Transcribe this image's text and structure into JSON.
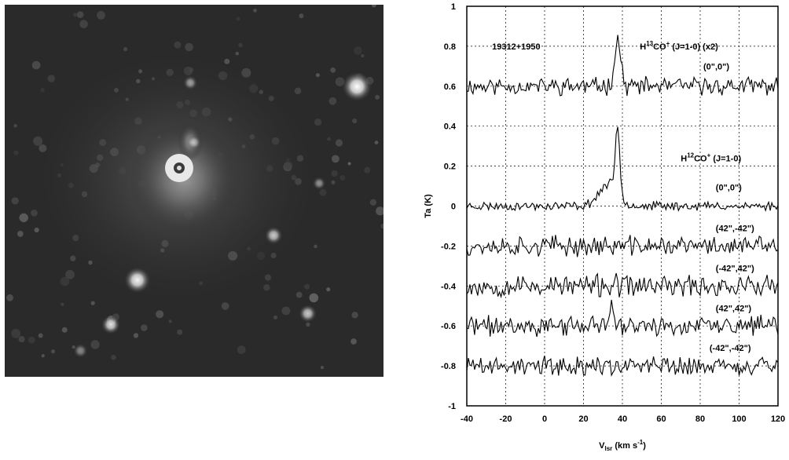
{
  "image_panel": {
    "kind": "grayscale astronomical image",
    "background": "#2a2a2a",
    "nebula": {
      "label_visible": false
    },
    "point_sources": [
      {
        "xf": 0.93,
        "yf": 0.22,
        "b": 1.0,
        "r": 0.025
      },
      {
        "xf": 0.35,
        "yf": 0.74,
        "b": 0.95,
        "r": 0.022
      },
      {
        "xf": 0.28,
        "yf": 0.86,
        "b": 0.85,
        "r": 0.016
      },
      {
        "xf": 0.71,
        "yf": 0.62,
        "b": 0.75,
        "r": 0.015
      },
      {
        "xf": 0.8,
        "yf": 0.83,
        "b": 0.75,
        "r": 0.015
      },
      {
        "xf": 0.49,
        "yf": 0.21,
        "b": 0.55,
        "r": 0.012
      },
      {
        "xf": 0.83,
        "yf": 0.48,
        "b": 0.5,
        "r": 0.011
      },
      {
        "xf": 0.2,
        "yf": 0.93,
        "b": 0.45,
        "r": 0.012
      },
      {
        "xf": 0.5,
        "yf": 0.37,
        "b": 0.55,
        "r": 0.012
      }
    ]
  },
  "chart_data": {
    "type": "line",
    "title": "",
    "source_label": "19312+1950",
    "xlabel_main": "V",
    "xlabel_sub": "lsr",
    "xlabel_units": " (km s",
    "xlabel_exp": "-1",
    "xlabel_close": ")",
    "ylabel": "Ta (K)",
    "xlim": [
      -40,
      120
    ],
    "ylim": [
      -1,
      1
    ],
    "xticks": [
      -40,
      -20,
      0,
      20,
      40,
      60,
      80,
      100,
      120
    ],
    "yticks": [
      -1,
      -0.8,
      -0.6,
      -0.4,
      -0.2,
      0,
      0.2,
      0.4,
      0.6,
      0.8,
      1
    ],
    "ytick_labels": [
      "-1",
      "-0.8",
      "-0.6",
      "-0.4",
      "-0.2",
      "0",
      "0.2",
      "0.4",
      "0.6",
      "0.8",
      "1"
    ],
    "grid": true,
    "annotations": {
      "h13co_prefix": "H",
      "h13co_sup": "13",
      "h13co_rest": "CO",
      "h13co_plus": "+",
      "h13co_trans": " (J=1-0) (x2)",
      "h12co_prefix": "H",
      "h12co_sup": "12",
      "h12co_rest": "CO",
      "h12co_plus": "+",
      "h12co_trans": " (J=1-0)"
    },
    "series": [
      {
        "name": "(0\",0\")",
        "baseline": 0.6,
        "noise": 0.035,
        "peak_v": 37.5,
        "peak_amp": 0.24,
        "peak_width": 2.2,
        "wing_amp": 0.0,
        "seed": 11
      },
      {
        "name": "(0\",0\")",
        "baseline": 0.0,
        "noise": 0.018,
        "peak_v": 37.5,
        "peak_amp": 0.33,
        "peak_width": 1.6,
        "wing_amp": 0.11,
        "seed": 23
      },
      {
        "name": "(42\",-42\")",
        "baseline": -0.2,
        "noise": 0.04,
        "peak_v": 0,
        "peak_amp": 0,
        "peak_width": 1,
        "wing_amp": 0,
        "seed": 37
      },
      {
        "name": "(-42\",42\")",
        "baseline": -0.4,
        "noise": 0.045,
        "peak_v": 0,
        "peak_amp": 0,
        "peak_width": 1,
        "wing_amp": 0,
        "seed": 53
      },
      {
        "name": "(42\",42\")",
        "baseline": -0.6,
        "noise": 0.04,
        "peak_v": 34,
        "peak_amp": 0.1,
        "peak_width": 1.5,
        "wing_amp": 0,
        "seed": 71
      },
      {
        "name": "(-42\",-42\")",
        "baseline": -0.8,
        "noise": 0.04,
        "peak_v": 0,
        "peak_amp": 0,
        "peak_width": 1,
        "wing_amp": 0,
        "seed": 89
      }
    ]
  }
}
